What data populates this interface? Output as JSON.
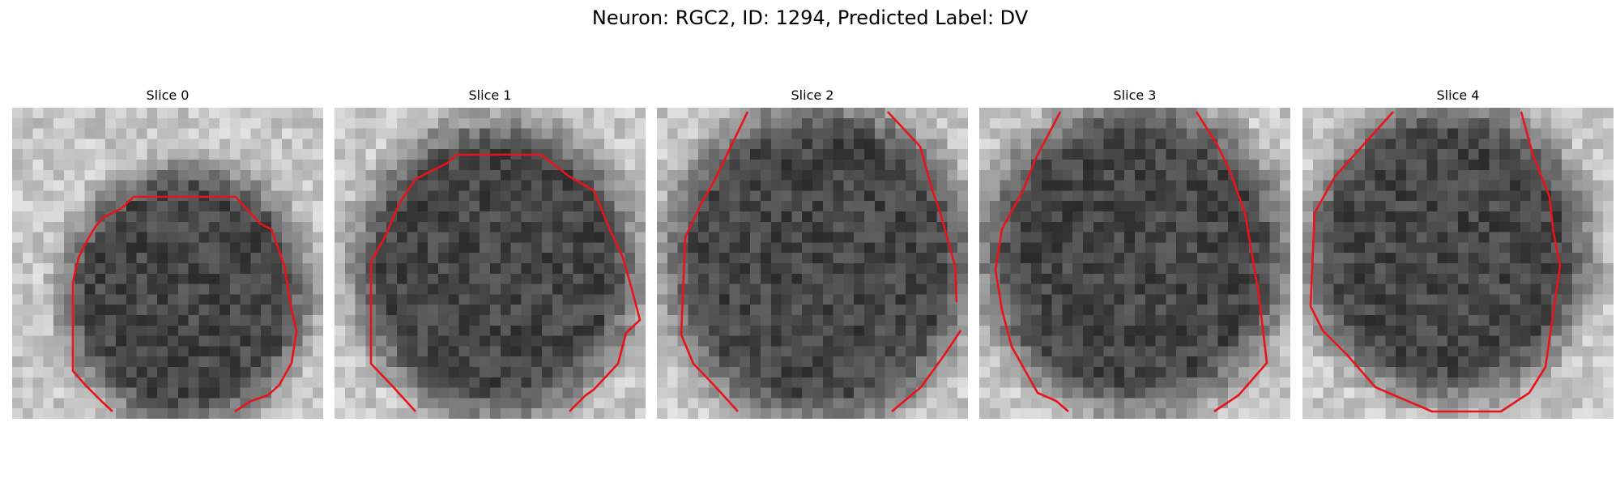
{
  "figure": {
    "title": "Neuron: RGC2, ID: 1294, Predicted Label: DV"
  },
  "colors": {
    "contour": "#e8141b",
    "background": "#ffffff"
  },
  "panels": [
    {
      "title": "Slice 0"
    },
    {
      "title": "Slice 1"
    },
    {
      "title": "Slice 2"
    },
    {
      "title": "Slice 3"
    },
    {
      "title": "Slice 4"
    }
  ]
}
